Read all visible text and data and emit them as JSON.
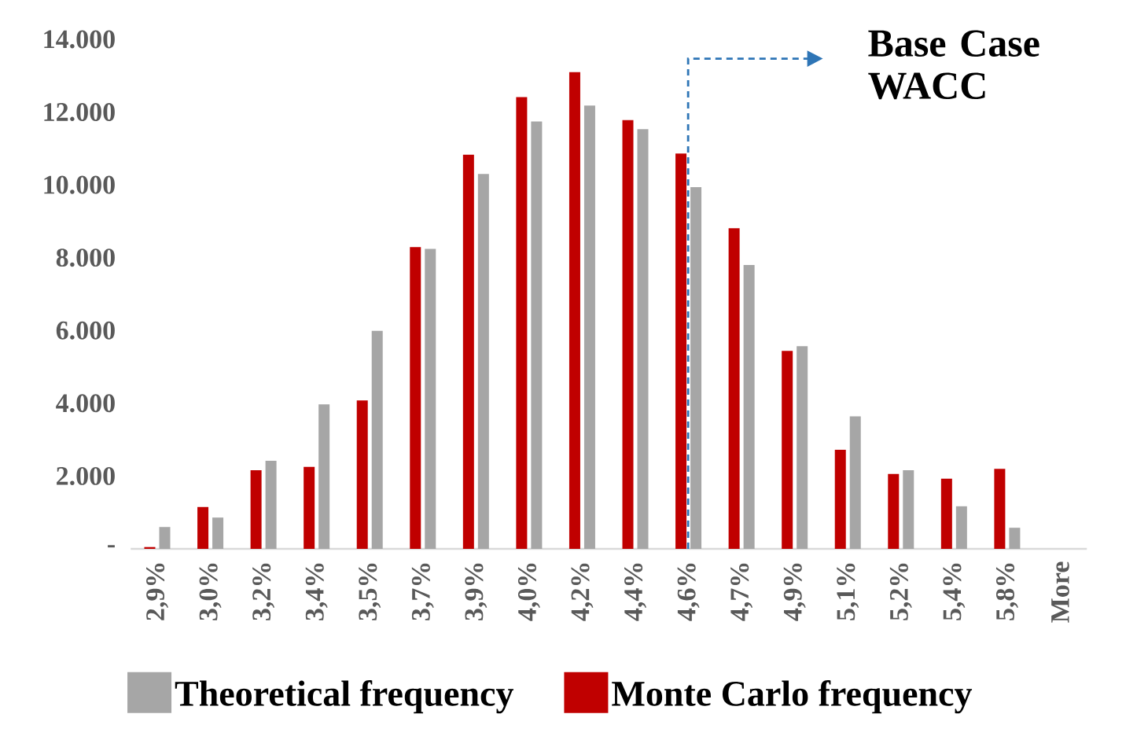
{
  "chart_data": {
    "type": "bar",
    "categories": [
      "2,9%",
      "3,0%",
      "3,2%",
      "3,4%",
      "3,5%",
      "3,7%",
      "3,9%",
      "4,0%",
      "4,2%",
      "4,4%",
      "4,6%",
      "4,7%",
      "4,9%",
      "5,1%",
      "5,2%",
      "5,4%",
      "5,8%",
      "More"
    ],
    "series": [
      {
        "name": "Monte Carlo frequency",
        "color": "#c00000",
        "values": [
          50,
          1150,
          2160,
          2250,
          4080,
          8290,
          10830,
          12410,
          13100,
          11780,
          10860,
          8810,
          5440,
          2720,
          2060,
          1930,
          2200,
          0
        ]
      },
      {
        "name": "Theoretical frequency",
        "color": "#a6a6a6",
        "values": [
          600,
          860,
          2420,
          3970,
          5990,
          8240,
          10300,
          11740,
          12180,
          11530,
          9940,
          7800,
          5570,
          3640,
          2160,
          1170,
          580,
          0
        ]
      }
    ],
    "ylim": [
      0,
      14000
    ],
    "yticks": [
      {
        "value": 0,
        "label": "-"
      },
      {
        "value": 2000,
        "label": "2.000"
      },
      {
        "value": 4000,
        "label": "4.000"
      },
      {
        "value": 6000,
        "label": "6.000"
      },
      {
        "value": 8000,
        "label": "8.000"
      },
      {
        "value": 10000,
        "label": "10.000"
      },
      {
        "value": 12000,
        "label": "12.000"
      },
      {
        "value": 14000,
        "label": "14.000"
      }
    ],
    "grid": false,
    "legend": "bottom",
    "annotations": [
      "Base Case WACC"
    ]
  }
}
